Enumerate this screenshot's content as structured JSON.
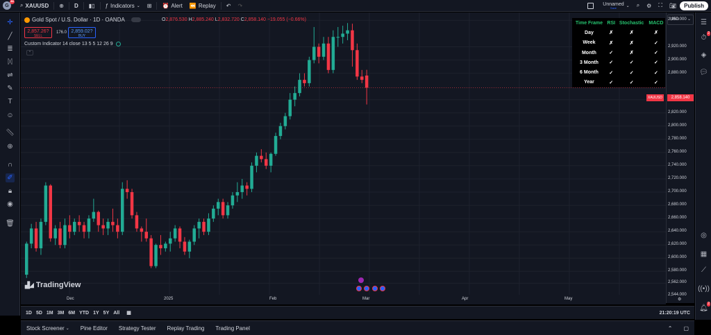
{
  "topbar": {
    "avatar_initial": "G",
    "avatar_badge": "11",
    "symbol": "XAUUSD",
    "interval": "D",
    "indicators_label": "Indicators",
    "alert_label": "Alert",
    "replay_label": "Replay",
    "layout_name": "Unnamed",
    "layout_status": "Save",
    "publish_label": "Publish"
  },
  "chart_header": {
    "title": "Gold Spot / U.S. Dollar · 1D · OANDA",
    "ohlc": {
      "o_key": "O",
      "o": "2,876.530",
      "h_key": "H",
      "h": "2,885.240",
      "l_key": "L",
      "l": "2,832.720",
      "c_key": "C",
      "c": "2,858.140",
      "change": "−19.055 (−0.66%)"
    },
    "sell_price": "2,857.26?",
    "sell_label": "SELL",
    "spread": "176.0",
    "buy_price": "2,859.02?",
    "buy_label": "BUY",
    "indicator": "Custom Indicator 14 close 13 5 5 12 26 9"
  },
  "tf_table": {
    "headers": [
      "Time Frame",
      "RSI",
      "Stochastic",
      "MACD"
    ],
    "rows": [
      [
        "Day",
        "✗",
        "✗",
        "✗"
      ],
      [
        "Week",
        "✗",
        "✗",
        "✓"
      ],
      [
        "Month",
        "✓",
        "✗",
        "✓"
      ],
      [
        "3 Month",
        "✓",
        "✓",
        "✓"
      ],
      [
        "6 Month",
        "✓",
        "✓",
        "✓"
      ],
      [
        "Year",
        "✓",
        "✓",
        "✓"
      ]
    ]
  },
  "price_scale": {
    "currency": "USD",
    "labels": [
      "2,960.000",
      "2,920.000",
      "2,900.000",
      "2,880.000",
      "2,840.000",
      "2,820.000",
      "2,800.000",
      "2,780.000",
      "2,760.000",
      "2,740.000",
      "2,720.000",
      "2,700.000",
      "2,680.000",
      "2,660.000",
      "2,640.000",
      "2,620.000",
      "2,600.000",
      "2,580.000",
      "2,562.000",
      "2,544.000"
    ],
    "current_price": "2,858.140",
    "current_symbol": "XAUUSD"
  },
  "time_axis": {
    "labels": [
      "Dec",
      "2025",
      "Feb",
      "Mar",
      "Apr",
      "May"
    ]
  },
  "watermark": "TradingView",
  "bottom_bar": {
    "ranges": [
      "1D",
      "5D",
      "1M",
      "3M",
      "6M",
      "YTD",
      "1Y",
      "5Y",
      "All"
    ],
    "clock": "21:20:19 UTC"
  },
  "panel_tabs": [
    "Stock Screener",
    "Pine Editor",
    "Strategy Tester",
    "Replay Trading",
    "Trading Panel"
  ],
  "right_badges": {
    "alerts": "2",
    "notifications": "2"
  },
  "colors": {
    "up": "#22ab94",
    "down": "#f23645",
    "background": "#131722",
    "accent": "#2962ff"
  },
  "chart_data": {
    "type": "candlestick",
    "ylim": [
      2532,
      2972
    ],
    "ohlc_approx": [
      [
        2575,
        2625,
        2570,
        2622
      ],
      [
        2622,
        2652,
        2615,
        2645
      ],
      [
        2645,
        2655,
        2610,
        2615
      ],
      [
        2615,
        2660,
        2605,
        2655
      ],
      [
        2655,
        2715,
        2650,
        2710
      ],
      [
        2710,
        2712,
        2625,
        2630
      ],
      [
        2630,
        2650,
        2620,
        2645
      ],
      [
        2645,
        2655,
        2615,
        2620
      ],
      [
        2620,
        2660,
        2615,
        2650
      ],
      [
        2650,
        2665,
        2630,
        2640
      ],
      [
        2640,
        2660,
        2635,
        2655
      ],
      [
        2655,
        2665,
        2640,
        2650
      ],
      [
        2650,
        2655,
        2630,
        2640
      ],
      [
        2640,
        2665,
        2630,
        2660
      ],
      [
        2660,
        2690,
        2655,
        2670
      ],
      [
        2670,
        2672,
        2640,
        2650
      ],
      [
        2650,
        2660,
        2635,
        2645
      ],
      [
        2645,
        2660,
        2635,
        2655
      ],
      [
        2655,
        2675,
        2640,
        2650
      ],
      [
        2650,
        2660,
        2630,
        2640
      ],
      [
        2640,
        2715,
        2635,
        2705
      ],
      [
        2705,
        2718,
        2690,
        2700
      ],
      [
        2700,
        2705,
        2660,
        2665
      ],
      [
        2665,
        2670,
        2640,
        2645
      ],
      [
        2645,
        2648,
        2625,
        2640
      ],
      [
        2640,
        2660,
        2625,
        2630
      ],
      [
        2630,
        2635,
        2585,
        2588
      ],
      [
        2588,
        2622,
        2585,
        2620
      ],
      [
        2620,
        2635,
        2605,
        2615
      ],
      [
        2615,
        2625,
        2610,
        2622
      ],
      [
        2622,
        2640,
        2610,
        2630
      ],
      [
        2630,
        2650,
        2625,
        2645
      ],
      [
        2645,
        2648,
        2615,
        2625
      ],
      [
        2625,
        2632,
        2605,
        2610
      ],
      [
        2610,
        2628,
        2600,
        2625
      ],
      [
        2625,
        2650,
        2620,
        2645
      ],
      [
        2645,
        2660,
        2630,
        2655
      ],
      [
        2655,
        2660,
        2635,
        2640
      ],
      [
        2640,
        2668,
        2635,
        2660
      ],
      [
        2660,
        2680,
        2655,
        2675
      ],
      [
        2675,
        2690,
        2665,
        2685
      ],
      [
        2685,
        2690,
        2660,
        2665
      ],
      [
        2665,
        2685,
        2660,
        2680
      ],
      [
        2680,
        2700,
        2675,
        2695
      ],
      [
        2695,
        2715,
        2685,
        2700
      ],
      [
        2700,
        2720,
        2690,
        2710
      ],
      [
        2710,
        2715,
        2695,
        2705
      ],
      [
        2705,
        2745,
        2700,
        2740
      ],
      [
        2740,
        2760,
        2730,
        2755
      ],
      [
        2755,
        2765,
        2745,
        2750
      ],
      [
        2750,
        2760,
        2735,
        2740
      ],
      [
        2740,
        2760,
        2730,
        2758
      ],
      [
        2758,
        2790,
        2755,
        2785
      ],
      [
        2785,
        2805,
        2780,
        2800
      ],
      [
        2800,
        2820,
        2795,
        2815
      ],
      [
        2815,
        2850,
        2810,
        2840
      ],
      [
        2840,
        2860,
        2830,
        2850
      ],
      [
        2850,
        2880,
        2845,
        2870
      ],
      [
        2870,
        2880,
        2860,
        2865
      ],
      [
        2865,
        2905,
        2860,
        2900
      ],
      [
        2900,
        2950,
        2895,
        2920
      ],
      [
        2920,
        2925,
        2895,
        2905
      ],
      [
        2905,
        2935,
        2900,
        2925
      ],
      [
        2925,
        2935,
        2880,
        2885
      ],
      [
        2885,
        2945,
        2880,
        2935
      ],
      [
        2935,
        2950,
        2920,
        2935
      ],
      [
        2935,
        2952,
        2925,
        2940
      ],
      [
        2940,
        2956,
        2930,
        2945
      ],
      [
        2945,
        2955,
        2890,
        2915
      ],
      [
        2915,
        2925,
        2870,
        2875
      ],
      [
        2875,
        2885,
        2865,
        2870
      ],
      [
        2876.53,
        2885.24,
        2832.72,
        2858.14
      ]
    ]
  }
}
